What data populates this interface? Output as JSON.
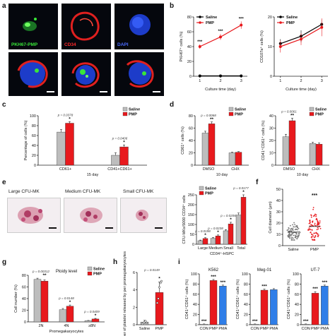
{
  "panel_labels": {
    "a": "a",
    "b": "b",
    "c": "c",
    "d": "d",
    "e": "e",
    "f": "f",
    "g": "g",
    "h": "h",
    "i": "i"
  },
  "panel_a": {
    "captions": [
      "PKH67-PMP",
      "CD34",
      "DAPI"
    ],
    "caption_colors": [
      "#39e639",
      "#ff2a2a",
      "#4b6bff"
    ]
  },
  "panel_e_images": {
    "titles": [
      "Large CFU-MK",
      "Medium CFU-MK",
      "Small CFU-MK"
    ]
  },
  "colors": {
    "saline": "#bdbdbd",
    "pmp": "#e8191d",
    "pma": "#2f7ee8",
    "black": "#000000"
  },
  "chart_data": [
    {
      "id": "b1",
      "type": "line",
      "xlabel": "Culture time (day)",
      "ylabel": "PKH67⁺ cells (%)",
      "x": [
        1,
        2,
        3
      ],
      "xlim": [
        0.7,
        3.3
      ],
      "ylim": [
        0,
        80
      ],
      "yticks": [
        0,
        20,
        40,
        60,
        80
      ],
      "series": [
        {
          "name": "Saline",
          "values": [
            0.5,
            0.5,
            0.5
          ],
          "errors": [
            0.5,
            0.5,
            0.5
          ]
        },
        {
          "name": "PMP",
          "values": [
            40,
            53,
            69
          ],
          "errors": [
            3,
            4,
            5
          ]
        }
      ],
      "significance": [
        "***",
        "***",
        "***"
      ],
      "legend": "top-left"
    },
    {
      "id": "b2",
      "type": "line",
      "xlabel": "Culture time (day)",
      "ylabel": "CD107a⁺ cells (%)",
      "x": [
        1,
        2,
        3
      ],
      "xlim": [
        0.7,
        3.3
      ],
      "ylim": [
        0,
        20
      ],
      "yticks": [
        0,
        10,
        20
      ],
      "series": [
        {
          "name": "Saline",
          "values": [
            11,
            13.5,
            17.5
          ],
          "errors": [
            1.5,
            2,
            1.5
          ]
        },
        {
          "name": "PMP",
          "values": [
            10,
            12.5,
            16.5
          ],
          "errors": [
            2,
            2,
            3
          ]
        }
      ],
      "legend": "top-left"
    },
    {
      "id": "c",
      "type": "bar",
      "ylabel": "Percentage of cells (%)",
      "xlabel": "15 day",
      "categories": [
        "CD61+",
        "CD41+CD61+"
      ],
      "ylim": [
        0,
        100
      ],
      "yticks": [
        0,
        20,
        40,
        60,
        80,
        100
      ],
      "series": [
        {
          "name": "Saline",
          "values": [
            67,
            20
          ],
          "errors": [
            5,
            5
          ]
        },
        {
          "name": "PMP",
          "values": [
            85,
            37
          ],
          "errors": [
            3,
            4
          ]
        }
      ],
      "annotations": [
        "p = 0.0378",
        "p = 0.0406"
      ],
      "significance": [
        "*",
        "*"
      ],
      "legend": "top-right"
    },
    {
      "id": "d1",
      "type": "bar",
      "ylabel": "CD61⁺ cells (%)",
      "xlabel": "10 day",
      "categories": [
        "DMSO",
        "CHX"
      ],
      "ylim": [
        0,
        80
      ],
      "yticks": [
        0,
        20,
        40,
        60,
        80
      ],
      "series": [
        {
          "name": "Saline",
          "values": [
            52,
            20
          ],
          "errors": [
            3,
            1
          ]
        },
        {
          "name": "PMP",
          "values": [
            67,
            21
          ],
          "errors": [
            3,
            1
          ]
        }
      ],
      "annotations": [
        "p = 0.0068"
      ],
      "significance": [
        "**"
      ],
      "legend": "top-right"
    },
    {
      "id": "d2",
      "type": "bar",
      "ylabel": "CD41⁺CD61⁺ cells (%)",
      "xlabel": "10 day",
      "categories": [
        "DMSO",
        "CHX"
      ],
      "ylim": [
        0,
        40
      ],
      "yticks": [
        0,
        10,
        20,
        30,
        40
      ],
      "series": [
        {
          "name": "Saline",
          "values": [
            23,
            17.5
          ],
          "errors": [
            2,
            1
          ]
        },
        {
          "name": "PMP",
          "values": [
            36,
            17
          ],
          "errors": [
            2,
            1
          ]
        }
      ],
      "annotations": [
        "p = 0.0061"
      ],
      "significance": [
        "**"
      ],
      "legend": "top-right"
    },
    {
      "id": "e",
      "type": "bar",
      "ylabel": "CFU-MKs/5000 CD34⁺ cells",
      "xlabel": "CD34⁺-HSPC",
      "categories": [
        "Large",
        "Medium",
        "Small",
        "Total"
      ],
      "ylim": [
        0,
        250
      ],
      "yticks": [
        0,
        50,
        100,
        150,
        200,
        250
      ],
      "series": [
        {
          "name": "Saline",
          "values": [
            18,
            30,
            68,
            148
          ],
          "errors": [
            3,
            4,
            6,
            10
          ]
        },
        {
          "name": "PMP",
          "values": [
            29,
            42,
            103,
            238
          ],
          "errors": [
            4,
            5,
            8,
            12
          ]
        }
      ],
      "annotations": [
        "p = 0.0198",
        "p = 0.0238",
        "p = 0.0206",
        "p = 0.0177"
      ],
      "significance": [
        "*",
        "*",
        "*",
        "*"
      ],
      "legend": "top-left"
    },
    {
      "id": "f",
      "type": "scatter",
      "ylabel": "Cell diameter (μm)",
      "categories": [
        "Saline",
        "PMP"
      ],
      "ylim": [
        0,
        50
      ],
      "yticks": [
        0,
        10,
        20,
        30,
        40,
        50
      ],
      "series": [
        {
          "name": "Saline",
          "mean": 12,
          "spread": 4,
          "min": 5,
          "max": 23,
          "n": 90
        },
        {
          "name": "PMP",
          "mean": 17,
          "spread": 7,
          "min": 5,
          "max": 40,
          "n": 90
        }
      ],
      "significance": [
        "***"
      ]
    },
    {
      "id": "g",
      "type": "bar",
      "title": "Ploidy level",
      "ylabel": "Cell number (%)",
      "xlabel": "Promegakaryocytes",
      "categories": [
        "2N",
        "4N",
        "≥8N"
      ],
      "ylim": [
        0,
        80
      ],
      "yticks": [
        0,
        20,
        40,
        60,
        80
      ],
      "series": [
        {
          "name": "Saline",
          "values": [
            73,
            21,
            2
          ],
          "errors": [
            2,
            2,
            0.5
          ]
        },
        {
          "name": "PMP",
          "values": [
            70,
            27,
            5
          ],
          "errors": [
            2,
            2,
            1
          ]
        }
      ],
      "annotations": [
        "p = 0.00312",
        "p = 0.0148",
        "p = 0.0409"
      ],
      "significance": [
        "**",
        "*",
        "*"
      ],
      "legend": "top-right"
    },
    {
      "id": "h",
      "type": "bar",
      "ylabel": "Number of platelet released by per promegakaryocytes",
      "categories": [
        "Saline",
        "PMP"
      ],
      "ylim": [
        0,
        6
      ],
      "yticks": [
        0,
        2,
        4,
        6
      ],
      "series": [
        {
          "name": "Mean",
          "values": [
            0.3,
            3.7
          ],
          "errors": [
            0.2,
            1.2
          ]
        }
      ],
      "points": [
        [
          0.1,
          0.2,
          0.3,
          0.4,
          0.2
        ],
        [
          2.5,
          3.0,
          4.3,
          4.8,
          5.0
        ]
      ],
      "annotations": [
        "p = 0.0149"
      ],
      "significance": [
        "*"
      ]
    },
    {
      "id": "i1",
      "type": "bar",
      "title": "K562",
      "ylabel": "CD41⁺CD61⁺ cells (%)",
      "categories": [
        "CON",
        "PMP",
        "PMA"
      ],
      "ylim": [
        0,
        100
      ],
      "yticks": [
        0,
        20,
        40,
        60,
        80,
        100
      ],
      "series": [
        {
          "name": "Mean",
          "values": [
            1,
            87,
            76
          ],
          "errors": [
            0.5,
            2,
            2
          ]
        }
      ],
      "significance": [
        "***",
        "***",
        "***"
      ]
    },
    {
      "id": "i2",
      "type": "bar",
      "title": "Meg-01",
      "ylabel": "CD41⁺CD61⁺ cells (%)",
      "categories": [
        "CON",
        "PMP",
        "PMA"
      ],
      "ylim": [
        0,
        100
      ],
      "yticks": [
        0,
        20,
        40,
        60,
        80,
        100
      ],
      "series": [
        {
          "name": "Mean",
          "values": [
            1,
            68,
            69
          ],
          "errors": [
            0.5,
            2,
            2
          ]
        }
      ],
      "significance": [
        "***",
        "***"
      ]
    },
    {
      "id": "i3",
      "type": "bar",
      "title": "UT-7",
      "ylabel": "CD41⁺CD61⁺ cells (%)",
      "categories": [
        "CON",
        "PMP",
        "PMA"
      ],
      "ylim": [
        0,
        100
      ],
      "yticks": [
        0,
        20,
        40,
        60,
        80,
        100
      ],
      "series": [
        {
          "name": "Mean",
          "values": [
            1,
            62,
            76
          ],
          "errors": [
            0.5,
            3,
            2
          ]
        }
      ],
      "significance": [
        "***",
        "***",
        "***"
      ]
    }
  ]
}
